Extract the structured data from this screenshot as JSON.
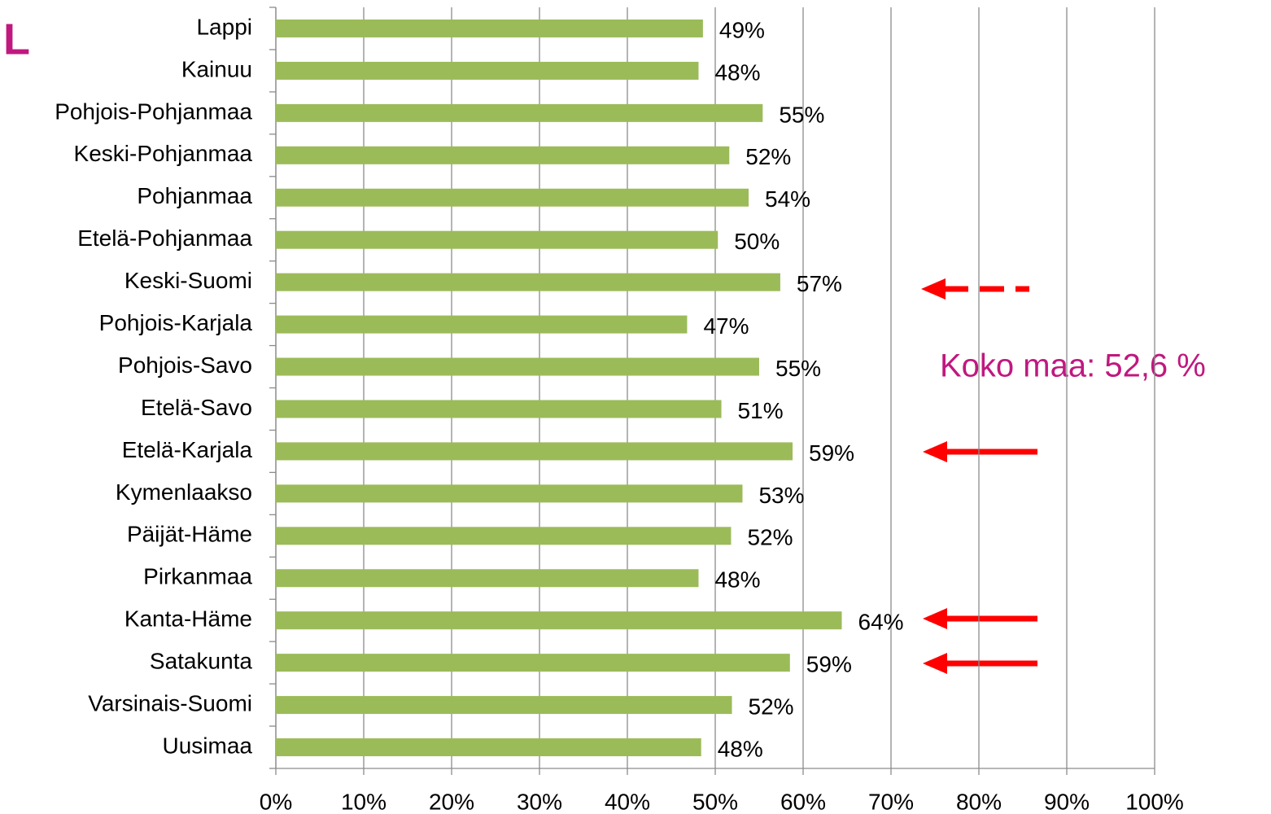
{
  "chart_data": {
    "type": "bar",
    "orientation": "horizontal",
    "corner_label": "L",
    "annotation": "Koko maa: 52,6 %",
    "categories": [
      "Lappi",
      "Kainuu",
      "Pohjois-Pohjanmaa",
      "Keski-Pohjanmaa",
      "Pohjanmaa",
      "Etelä-Pohjanmaa",
      "Keski-Suomi",
      "Pohjois-Karjala",
      "Pohjois-Savo",
      "Etelä-Savo",
      "Etelä-Karjala",
      "Kymenlaakso",
      "Päijät-Häme",
      "Pirkanmaa",
      "Kanta-Häme",
      "Satakunta",
      "Varsinais-Suomi",
      "Uusimaa"
    ],
    "values": [
      48.6,
      48.1,
      55.4,
      51.6,
      53.8,
      50.3,
      57.4,
      46.8,
      55.0,
      50.7,
      58.8,
      53.1,
      51.8,
      48.1,
      64.4,
      58.5,
      51.9,
      48.4
    ],
    "value_labels": [
      "49%",
      "48%",
      "55%",
      "52%",
      "54%",
      "50%",
      "57%",
      "47%",
      "55%",
      "51%",
      "59%",
      "53%",
      "52%",
      "48%",
      "64%",
      "59%",
      "52%",
      "48%"
    ],
    "color": "#9bbb59",
    "xlim": [
      0,
      100
    ],
    "xticks": [
      {
        "value": 0,
        "label": "0%"
      },
      {
        "value": 10,
        "label": "10%"
      },
      {
        "value": 20,
        "label": "20%"
      },
      {
        "value": 30,
        "label": "30%"
      },
      {
        "value": 40,
        "label": "40%"
      },
      {
        "value": 50,
        "label": "50%"
      },
      {
        "value": 60,
        "label": "60%"
      },
      {
        "value": 70,
        "label": "70%"
      },
      {
        "value": 80,
        "label": "80%"
      },
      {
        "value": 90,
        "label": "90%"
      },
      {
        "value": 100,
        "label": "100%"
      }
    ],
    "grid": true
  }
}
